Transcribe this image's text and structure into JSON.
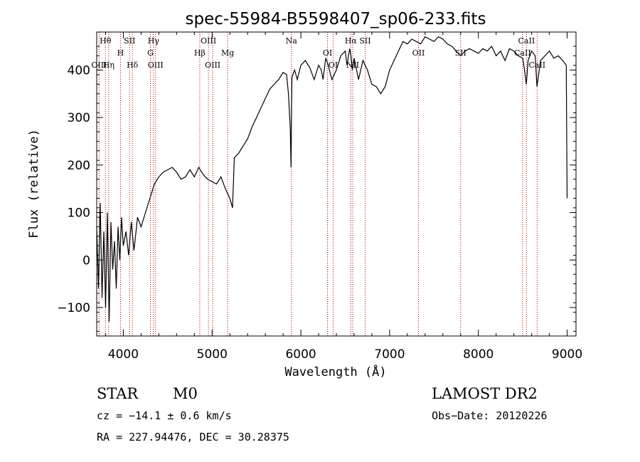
{
  "chart_data": {
    "type": "line",
    "title": "spec-55984-B5598407_sp06-233.fits",
    "xlabel": "Wavelength (Å)",
    "ylabel": "Flux (relative)",
    "xlim": [
      3700,
      9100
    ],
    "ylim": [
      -160,
      480
    ],
    "xticks": [
      4000,
      5000,
      6000,
      7000,
      8000,
      9000
    ],
    "yticks": [
      -100,
      0,
      100,
      200,
      300,
      400
    ],
    "grid": false,
    "series": [
      {
        "x": [
          3700,
          3720,
          3740,
          3760,
          3780,
          3800,
          3820,
          3840,
          3860,
          3880,
          3900,
          3920,
          3940,
          3960,
          3980,
          4000,
          4030,
          4060,
          4090,
          4120,
          4160,
          4200,
          4250,
          4300,
          4350,
          4400,
          4450,
          4500,
          4550,
          4600,
          4650,
          4700,
          4750,
          4800,
          4850,
          4900,
          4950,
          5000,
          5050,
          5100,
          5150,
          5200,
          5230,
          5250,
          5300,
          5350,
          5400,
          5450,
          5500,
          5550,
          5600,
          5650,
          5700,
          5750,
          5800,
          5840,
          5860,
          5880,
          5890,
          5895,
          5900,
          5910,
          5930,
          5960,
          6000,
          6050,
          6100,
          6150,
          6200,
          6230,
          6250,
          6280,
          6300,
          6350,
          6400,
          6450,
          6500,
          6520,
          6550,
          6565,
          6580,
          6600,
          6650,
          6700,
          6750,
          6800,
          6850,
          6900,
          6950,
          7000,
          7050,
          7100,
          7150,
          7200,
          7250,
          7300,
          7350,
          7400,
          7450,
          7500,
          7550,
          7600,
          7650,
          7700,
          7750,
          7800,
          7850,
          7900,
          7950,
          8000,
          8050,
          8100,
          8150,
          8200,
          8250,
          8300,
          8350,
          8400,
          8450,
          8500,
          8520,
          8540,
          8560,
          8600,
          8640,
          8660,
          8700,
          8750,
          8800,
          8850,
          8900,
          8950,
          8990,
          9000
        ],
        "y": [
          70,
          -60,
          120,
          -80,
          60,
          -100,
          100,
          -130,
          80,
          -20,
          40,
          -60,
          70,
          0,
          90,
          30,
          60,
          10,
          80,
          20,
          90,
          70,
          100,
          130,
          160,
          175,
          185,
          190,
          195,
          185,
          170,
          175,
          190,
          175,
          195,
          180,
          170,
          165,
          160,
          175,
          150,
          130,
          110,
          215,
          225,
          240,
          255,
          280,
          300,
          320,
          340,
          360,
          370,
          380,
          395,
          390,
          350,
          280,
          195,
          330,
          385,
          390,
          400,
          380,
          410,
          420,
          405,
          380,
          410,
          400,
          380,
          425,
          415,
          380,
          400,
          430,
          440,
          410,
          445,
          430,
          400,
          425,
          380,
          420,
          400,
          370,
          365,
          350,
          365,
          400,
          420,
          440,
          460,
          455,
          465,
          460,
          455,
          470,
          465,
          460,
          470,
          465,
          455,
          450,
          440,
          430,
          440,
          445,
          440,
          435,
          445,
          440,
          450,
          430,
          440,
          420,
          445,
          440,
          430,
          425,
          400,
          370,
          420,
          440,
          430,
          365,
          420,
          430,
          440,
          425,
          430,
          420,
          410,
          130
        ]
      }
    ],
    "spectral_lines": [
      {
        "label": "Hθ",
        "wavelength": 3798,
        "row": 1
      },
      {
        "label": "OIII",
        "wavelength": 3727,
        "row": 3
      },
      {
        "label": "Hη",
        "wavelength": 3835,
        "row": 3
      },
      {
        "label": "SII",
        "wavelength": 4070,
        "row": 1
      },
      {
        "label": "H",
        "wavelength": 3968,
        "row": 2
      },
      {
        "label": "Hδ",
        "wavelength": 4102,
        "row": 3
      },
      {
        "label": "Hγ",
        "wavelength": 4340,
        "row": 1
      },
      {
        "label": "G",
        "wavelength": 4305,
        "row": 2
      },
      {
        "label": "OIII",
        "wavelength": 4363,
        "row": 3
      },
      {
        "label": "OIII",
        "wavelength": 4959,
        "row": 1
      },
      {
        "label": "Hβ",
        "wavelength": 4861,
        "row": 2
      },
      {
        "label": "OIII",
        "wavelength": 5007,
        "row": 3
      },
      {
        "label": "Mg",
        "wavelength": 5175,
        "row": 2
      },
      {
        "label": "Na",
        "wavelength": 5893,
        "row": 1
      },
      {
        "label": "OI",
        "wavelength": 6300,
        "row": 2
      },
      {
        "label": "OI",
        "wavelength": 6364,
        "row": 3
      },
      {
        "label": "Hα",
        "wavelength": 6563,
        "row": 1
      },
      {
        "label": "SII",
        "wavelength": 6724,
        "row": 1
      },
      {
        "label": "NII",
        "wavelength": 6584,
        "row": 3
      },
      {
        "label": "OII",
        "wavelength": 7325,
        "row": 2
      },
      {
        "label": "SII",
        "wavelength": 7800,
        "row": 2
      },
      {
        "label": "CaII",
        "wavelength": 8542,
        "row": 1
      },
      {
        "label": "CaII",
        "wavelength": 8498,
        "row": 2
      },
      {
        "label": "CaII",
        "wavelength": 8662,
        "row": 3
      }
    ],
    "line_marker_wavelengths": [
      3727,
      3798,
      3835,
      3968,
      4070,
      4102,
      4305,
      4340,
      4363,
      4861,
      4959,
      5007,
      5175,
      5893,
      6300,
      6364,
      6563,
      6584,
      6724,
      7325,
      7800,
      8498,
      8542,
      8662
    ]
  },
  "info": {
    "object_class": "STAR",
    "subclass": "M0",
    "survey": "LAMOST DR2",
    "redshift": "cz = −14.1 ± 0.6 km/s",
    "obs_date": "Obs−Date: 20120226",
    "coordinates": "RA = 227.94476, DEC =  30.28375"
  }
}
